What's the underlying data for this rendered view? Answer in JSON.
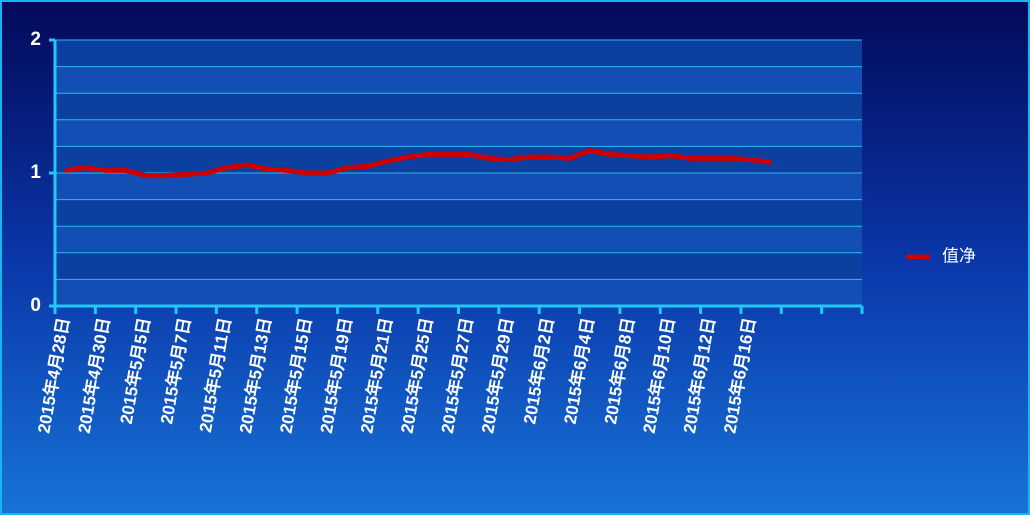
{
  "chart_data": {
    "type": "line",
    "categories": [
      "2015年4月28日",
      null,
      "2015年4月30日",
      null,
      "2015年5月5日",
      null,
      "2015年5月7日",
      null,
      "2015年5月11日",
      null,
      "2015年5月13日",
      null,
      "2015年5月15日",
      null,
      "2015年5月19日",
      null,
      "2015年5月21日",
      null,
      "2015年5月25日",
      null,
      "2015年5月27日",
      null,
      "2015年5月29日",
      null,
      "2015年6月2日",
      null,
      "2015年6月4日",
      null,
      "2015年6月8日",
      null,
      "2015年6月10日",
      null,
      "2015年6月12日",
      null,
      "2015年6月16日",
      null,
      null,
      null,
      null,
      null
    ],
    "series": [
      {
        "name": "值净",
        "color": "#cc0000",
        "values": [
          1.02,
          1.04,
          1.02,
          1.02,
          0.98,
          0.98,
          0.99,
          1.0,
          1.04,
          1.06,
          1.03,
          1.02,
          1.0,
          1.0,
          1.04,
          1.05,
          1.09,
          1.12,
          1.14,
          1.14,
          1.14,
          1.11,
          1.1,
          1.12,
          1.12,
          1.11,
          1.17,
          1.14,
          1.13,
          1.12,
          1.13,
          1.11,
          1.11,
          1.11,
          1.1,
          1.08,
          null,
          null,
          null,
          null
        ]
      }
    ],
    "ylim": [
      0,
      2
    ],
    "yticks": [
      0,
      1,
      2
    ],
    "ygrid": [
      0,
      0.2,
      0.4,
      0.6,
      0.8,
      1,
      1.2,
      1.4,
      1.6,
      1.8,
      2
    ],
    "grid": true,
    "legend": "right"
  }
}
